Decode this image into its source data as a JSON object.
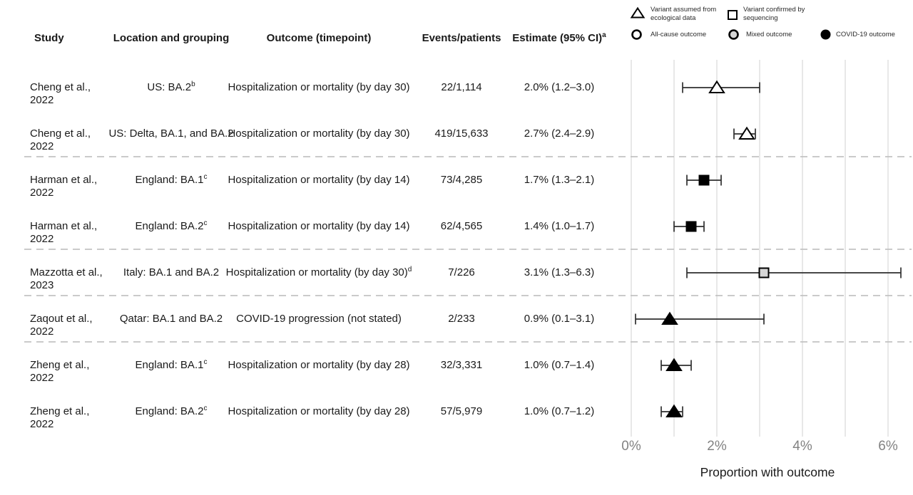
{
  "table": {
    "headers": {
      "study": "Study",
      "location": "Location and grouping",
      "outcome": "Outcome (timepoint)",
      "events": "Events/patients",
      "estimate": "Estimate (95% CI)",
      "estimate_sup": "a"
    }
  },
  "legend": {
    "items": [
      {
        "icon": "open-triangle",
        "line1": "Variant assumed from",
        "line2": "ecological data"
      },
      {
        "icon": "open-square",
        "line1": "Variant confirmed by",
        "line2": "sequencing"
      },
      {
        "icon": "open-circle",
        "line1": "All-cause outcome",
        "line2": ""
      },
      {
        "icon": "gray-circle",
        "line1": "Mixed outcome",
        "line2": ""
      },
      {
        "icon": "filled-circle",
        "line1": "COVID-19 outcome",
        "line2": ""
      }
    ]
  },
  "chart_data": {
    "type": "scatter",
    "subtype": "forest-plot-horizontal-ci",
    "xlabel": "Proportion with outcome",
    "xlim": [
      0,
      6
    ],
    "xtick_values": [
      0,
      2,
      4,
      6
    ],
    "xtick_labels": [
      "0%",
      "2%",
      "4%",
      "6%"
    ],
    "gridline_values": [
      0,
      1,
      2,
      3,
      4,
      5,
      6
    ],
    "grid": "vertical gridlines every 1%",
    "legend_position": "top-right",
    "rows": [
      {
        "study_line1": "Cheng et al.,",
        "study_line2": "2022",
        "location": "US: BA.2",
        "location_sup": "b",
        "outcome": "Hospitalization or mortality (by day 30)",
        "outcome_sup": "",
        "events": "22/1,114",
        "estimate": "2.0% (1.2–3.0)",
        "value_pct": 2.0,
        "ci_low_pct": 1.2,
        "ci_high_pct": 3.0,
        "marker": "triangle",
        "marker_fill": "open"
      },
      {
        "study_line1": "Cheng et al.,",
        "study_line2": "2022",
        "location": "US: Delta, BA.1, and BA.2",
        "location_sup": "",
        "outcome": "Hospitalization or mortality (by day 30)",
        "outcome_sup": "",
        "events": "419/15,633",
        "estimate": "2.7% (2.4–2.9)",
        "value_pct": 2.7,
        "ci_low_pct": 2.4,
        "ci_high_pct": 2.9,
        "marker": "triangle",
        "marker_fill": "open"
      },
      {
        "study_line1": "Harman et al.,",
        "study_line2": "2022",
        "location": "England: BA.1",
        "location_sup": "c",
        "outcome": "Hospitalization or mortality (by day 14)",
        "outcome_sup": "",
        "events": "73/4,285",
        "estimate": "1.7% (1.3–2.1)",
        "value_pct": 1.7,
        "ci_low_pct": 1.3,
        "ci_high_pct": 2.1,
        "marker": "square",
        "marker_fill": "filled"
      },
      {
        "study_line1": "Harman et al.,",
        "study_line2": "2022",
        "location": "England: BA.2",
        "location_sup": "c",
        "outcome": "Hospitalization or mortality (by day 14)",
        "outcome_sup": "",
        "events": "62/4,565",
        "estimate": "1.4% (1.0–1.7)",
        "value_pct": 1.4,
        "ci_low_pct": 1.0,
        "ci_high_pct": 1.7,
        "marker": "square",
        "marker_fill": "filled"
      },
      {
        "study_line1": "Mazzotta et al.,",
        "study_line2": "2023",
        "location": "Italy: BA.1 and BA.2",
        "location_sup": "",
        "outcome": "Hospitalization or mortality (by day 30)",
        "outcome_sup": "d",
        "events": "7/226",
        "estimate": "3.1% (1.3–6.3)",
        "value_pct": 3.1,
        "ci_low_pct": 1.3,
        "ci_high_pct": 6.3,
        "marker": "square",
        "marker_fill": "mixed"
      },
      {
        "study_line1": "Zaqout et al.,",
        "study_line2": "2022",
        "location": "Qatar: BA.1 and BA.2",
        "location_sup": "",
        "outcome": "COVID-19 progression (not stated)",
        "outcome_sup": "",
        "events": "2/233",
        "estimate": "0.9% (0.1–3.1)",
        "value_pct": 0.9,
        "ci_low_pct": 0.1,
        "ci_high_pct": 3.1,
        "marker": "triangle",
        "marker_fill": "filled"
      },
      {
        "study_line1": "Zheng et al.,",
        "study_line2": "2022",
        "location": "England: BA.1",
        "location_sup": "c",
        "outcome": "Hospitalization or mortality (by day 28)",
        "outcome_sup": "",
        "events": "32/3,331",
        "estimate": "1.0% (0.7–1.4)",
        "value_pct": 1.0,
        "ci_low_pct": 0.7,
        "ci_high_pct": 1.4,
        "marker": "triangle",
        "marker_fill": "filled"
      },
      {
        "study_line1": "Zheng et al.,",
        "study_line2": "2022",
        "location": "England: BA.2",
        "location_sup": "c",
        "outcome": "Hospitalization or mortality (by day 28)",
        "outcome_sup": "",
        "events": "57/5,979",
        "estimate": "1.0% (0.7–1.2)",
        "value_pct": 1.0,
        "ci_low_pct": 0.7,
        "ci_high_pct": 1.2,
        "marker": "triangle",
        "marker_fill": "filled"
      }
    ],
    "separators_after_rows": [
      1,
      3,
      4,
      5
    ]
  },
  "colors": {
    "text": "#1a1a1a",
    "tick_label": "#828282",
    "gridline": "#e2e2e2",
    "separator": "#c2c2c2",
    "marker": "#000000",
    "open_fill": "#ffffff",
    "mixed_fill": "#d6d6d6",
    "ci_line": "#2e2e2e"
  }
}
